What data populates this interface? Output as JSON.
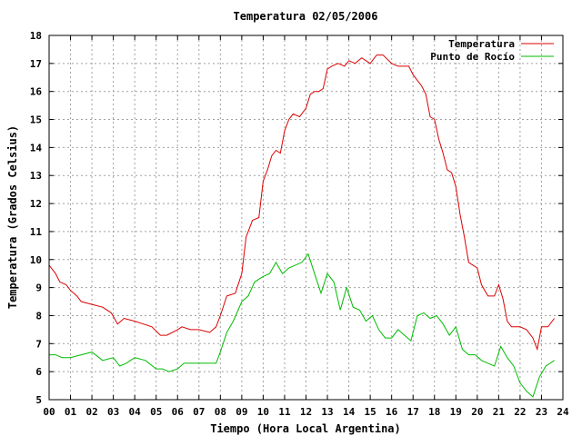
{
  "chart_data": {
    "type": "line",
    "title": "Temperatura 02/05/2006",
    "xlabel": "Tiempo (Hora Local Argentina)",
    "ylabel": "Temperatura (Grados Celsius)",
    "xlim": [
      0,
      24
    ],
    "ylim": [
      5,
      18
    ],
    "x_ticks": [
      "00",
      "01",
      "02",
      "03",
      "04",
      "05",
      "06",
      "07",
      "08",
      "09",
      "10",
      "11",
      "12",
      "13",
      "14",
      "15",
      "16",
      "17",
      "18",
      "19",
      "20",
      "21",
      "22",
      "23",
      "24"
    ],
    "y_ticks": [
      "5",
      "6",
      "7",
      "8",
      "9",
      "10",
      "11",
      "12",
      "13",
      "14",
      "15",
      "16",
      "17",
      "18"
    ],
    "grid": true,
    "legend_position": "top-right",
    "series": [
      {
        "name": "Temperatura",
        "color": "#dd0000",
        "x": [
          0,
          0.3,
          0.5,
          0.8,
          1.0,
          1.3,
          1.5,
          2.0,
          2.5,
          2.9,
          3.2,
          3.5,
          4.0,
          4.4,
          4.8,
          5.2,
          5.5,
          6.0,
          6.2,
          6.6,
          7.0,
          7.5,
          7.8,
          8.0,
          8.3,
          8.7,
          9.0,
          9.2,
          9.5,
          9.8,
          10.0,
          10.2,
          10.4,
          10.6,
          10.8,
          11.0,
          11.2,
          11.4,
          11.7,
          12.0,
          12.2,
          12.4,
          12.6,
          12.8,
          13.0,
          13.2,
          13.5,
          13.8,
          14.0,
          14.3,
          14.6,
          15.0,
          15.3,
          15.6,
          16.0,
          16.3,
          16.8,
          17.0,
          17.2,
          17.4,
          17.6,
          17.8,
          18.0,
          18.2,
          18.4,
          18.6,
          18.8,
          19.0,
          19.2,
          19.4,
          19.6,
          19.8,
          20.0,
          20.2,
          20.5,
          20.8,
          21.0,
          21.2,
          21.4,
          21.6,
          22.0,
          22.3,
          22.6,
          22.8,
          23.0,
          23.3,
          23.6
        ],
        "y": [
          9.8,
          9.5,
          9.2,
          9.1,
          8.9,
          8.7,
          8.5,
          8.4,
          8.3,
          8.1,
          7.7,
          7.9,
          7.8,
          7.7,
          7.6,
          7.3,
          7.3,
          7.5,
          7.6,
          7.5,
          7.5,
          7.4,
          7.6,
          8.0,
          8.7,
          8.8,
          9.5,
          10.8,
          11.4,
          11.5,
          12.8,
          13.2,
          13.7,
          13.9,
          13.8,
          14.6,
          15.0,
          15.2,
          15.1,
          15.4,
          15.9,
          16.0,
          16.0,
          16.1,
          16.8,
          16.9,
          17.0,
          16.9,
          17.1,
          17.0,
          17.2,
          17.0,
          17.3,
          17.3,
          17.0,
          16.9,
          16.9,
          16.6,
          16.4,
          16.2,
          15.9,
          15.1,
          15.0,
          14.3,
          13.8,
          13.2,
          13.1,
          12.6,
          11.6,
          10.8,
          9.9,
          9.8,
          9.7,
          9.1,
          8.7,
          8.7,
          9.1,
          8.6,
          7.8,
          7.6,
          7.6,
          7.5,
          7.2,
          6.8,
          7.6,
          7.6,
          7.9
        ]
      },
      {
        "name": "Punto de Rocío",
        "color": "#00bb00",
        "x": [
          0,
          0.3,
          0.6,
          1.0,
          1.5,
          2.0,
          2.5,
          3.0,
          3.3,
          3.6,
          4.0,
          4.5,
          5.0,
          5.3,
          5.6,
          6.0,
          6.3,
          6.6,
          7.0,
          7.5,
          7.8,
          8.0,
          8.3,
          8.6,
          9.0,
          9.3,
          9.6,
          10.0,
          10.3,
          10.6,
          10.9,
          11.2,
          11.5,
          11.8,
          12.1,
          12.4,
          12.7,
          13.0,
          13.3,
          13.6,
          13.9,
          14.2,
          14.5,
          14.8,
          15.1,
          15.4,
          15.7,
          16.0,
          16.3,
          16.6,
          16.9,
          17.2,
          17.5,
          17.8,
          18.1,
          18.4,
          18.7,
          19.0,
          19.3,
          19.6,
          19.9,
          20.2,
          20.5,
          20.8,
          21.1,
          21.4,
          21.7,
          22.0,
          22.3,
          22.6,
          22.9,
          23.2,
          23.6
        ],
        "y": [
          6.6,
          6.6,
          6.5,
          6.5,
          6.6,
          6.7,
          6.4,
          6.5,
          6.2,
          6.3,
          6.5,
          6.4,
          6.1,
          6.1,
          6.0,
          6.1,
          6.3,
          6.3,
          6.3,
          6.3,
          6.3,
          6.7,
          7.4,
          7.8,
          8.5,
          8.7,
          9.2,
          9.4,
          9.5,
          9.9,
          9.5,
          9.7,
          9.8,
          9.9,
          10.2,
          9.5,
          8.8,
          9.5,
          9.2,
          8.2,
          9.0,
          8.3,
          8.2,
          7.8,
          8.0,
          7.5,
          7.2,
          7.2,
          7.5,
          7.3,
          7.1,
          8.0,
          8.1,
          7.9,
          8.0,
          7.7,
          7.3,
          7.6,
          6.8,
          6.6,
          6.6,
          6.4,
          6.3,
          6.2,
          6.9,
          6.5,
          6.2,
          5.6,
          5.3,
          5.1,
          5.8,
          6.2,
          6.4
        ]
      }
    ]
  }
}
